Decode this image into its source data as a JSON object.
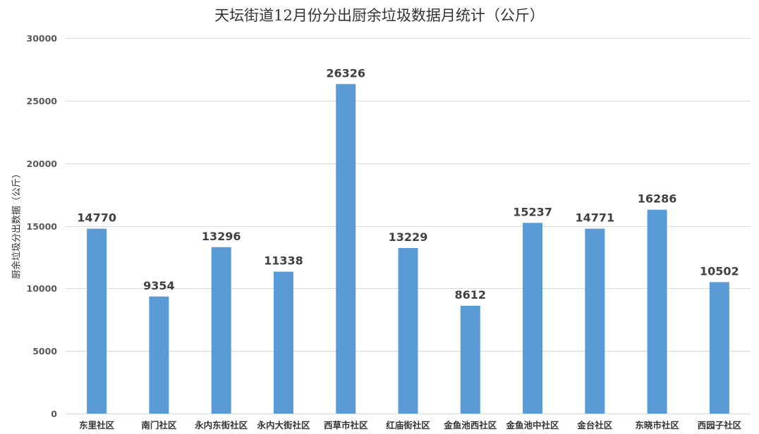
{
  "chart_data": {
    "type": "bar",
    "title": "天坛街道12月份分出厨余垃圾数据月统计（公斤）",
    "xlabel": "",
    "ylabel": "厨余垃圾分出数据（公斤）",
    "categories": [
      "东里社区",
      "南门社区",
      "永内东街社区",
      "永内大街社区",
      "西草市社区",
      "红庙街社区",
      "金鱼池西社区",
      "金鱼池中社区",
      "金台社区",
      "东晓市社区",
      "西园子社区"
    ],
    "values": [
      14770,
      9354,
      13296,
      11338,
      26326,
      13229,
      8612,
      15237,
      14771,
      16286,
      10502
    ],
    "ylim": [
      0,
      30000
    ],
    "yticks": [
      0,
      5000,
      10000,
      15000,
      20000,
      25000,
      30000
    ],
    "grid": true,
    "legend": "none",
    "bar_color": "#5B9BD5"
  }
}
